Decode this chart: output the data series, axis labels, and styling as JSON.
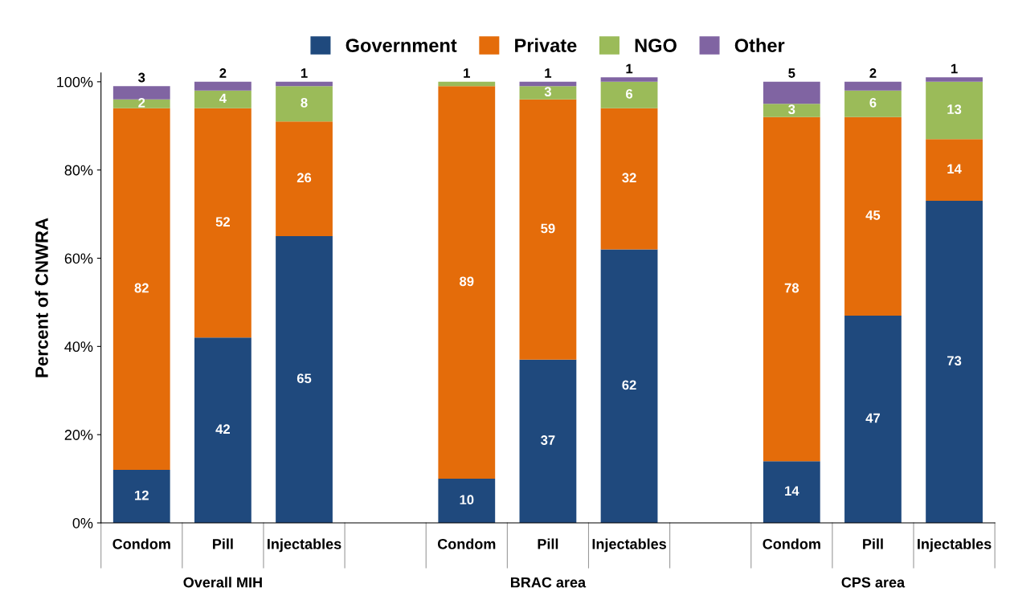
{
  "chart_data": {
    "type": "bar",
    "stacked": true,
    "ylabel": "Percent of CNWRA",
    "categories": [
      "Condom",
      "Pill",
      "Injectables",
      null,
      "Condom",
      "Pill",
      "Injectables",
      null,
      "Condom",
      "Pill",
      "Injectables"
    ],
    "series": [
      {
        "name": "Government",
        "color": "#1f497d",
        "values": [
          12,
          42,
          65,
          null,
          10,
          37,
          62,
          null,
          14,
          47,
          73
        ]
      },
      {
        "name": "Private",
        "color": "#e46c0a",
        "values": [
          82,
          52,
          26,
          null,
          89,
          59,
          32,
          null,
          78,
          45,
          14
        ]
      },
      {
        "name": "NGO",
        "color": "#9bbb59",
        "values": [
          2,
          4,
          8,
          null,
          1,
          3,
          6,
          null,
          3,
          6,
          13
        ]
      },
      {
        "name": "Other",
        "color": "#8064a2",
        "values": [
          3,
          2,
          1,
          null,
          null,
          1,
          1,
          null,
          5,
          2,
          1
        ]
      }
    ],
    "ylim": [
      0,
      102
    ],
    "yticks": [
      {
        "value": 0,
        "label": "0%"
      },
      {
        "value": 20,
        "label": "20%"
      },
      {
        "value": 40,
        "label": "40%"
      },
      {
        "value": 60,
        "label": "60%"
      },
      {
        "value": 80,
        "label": "80%"
      },
      {
        "value": 100,
        "label": "100%"
      }
    ],
    "data_labels": true,
    "legend": "top",
    "grid": false,
    "annotations": [
      "Overall MIH",
      "BRAC area",
      "CPS area"
    ]
  }
}
